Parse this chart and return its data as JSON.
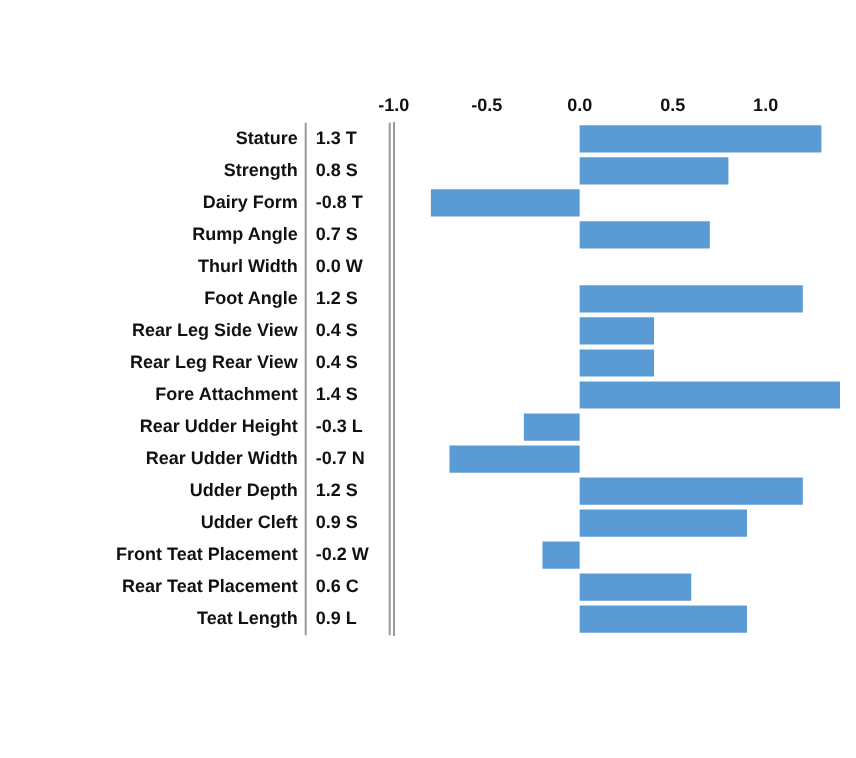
{
  "chart_data": {
    "type": "bar",
    "orientation": "horizontal",
    "categories": [
      "Stature",
      "Strength",
      "Dairy Form",
      "Rump Angle",
      "Thurl Width",
      "Foot Angle",
      "Rear Leg Side View",
      "Rear Leg Rear View",
      "Fore Attachment",
      "Rear Udder Height",
      "Rear Udder Width",
      "Udder Depth",
      "Udder Cleft",
      "Front Teat Placement",
      "Rear Teat Placement",
      "Teat Length"
    ],
    "values": [
      1.3,
      0.8,
      -0.8,
      0.7,
      0.0,
      1.2,
      0.4,
      0.4,
      1.4,
      -0.3,
      -0.7,
      1.2,
      0.9,
      -0.2,
      0.6,
      0.9
    ],
    "value_labels": [
      "1.3 T",
      "0.8 S",
      "-0.8 T",
      "0.7 S",
      "0.0 W",
      "1.2 S",
      "0.4 S",
      "0.4 S",
      "1.4 S",
      "-0.3 L",
      "-0.7 N",
      "1.2 S",
      "0.9 S",
      "-0.2 W",
      "0.6 C",
      "0.9 L"
    ],
    "color": "#5b9bd5",
    "xlim": [
      -1.0,
      1.4
    ],
    "xticks": [
      {
        "value": -1.0,
        "label": "-1.0"
      },
      {
        "value": -0.5,
        "label": "-0.5"
      },
      {
        "value": 0,
        "label": "0.0"
      },
      {
        "value": 0.5,
        "label": "0.5"
      },
      {
        "value": 1.0,
        "label": "1.0"
      }
    ],
    "grid": false,
    "legend": false
  }
}
